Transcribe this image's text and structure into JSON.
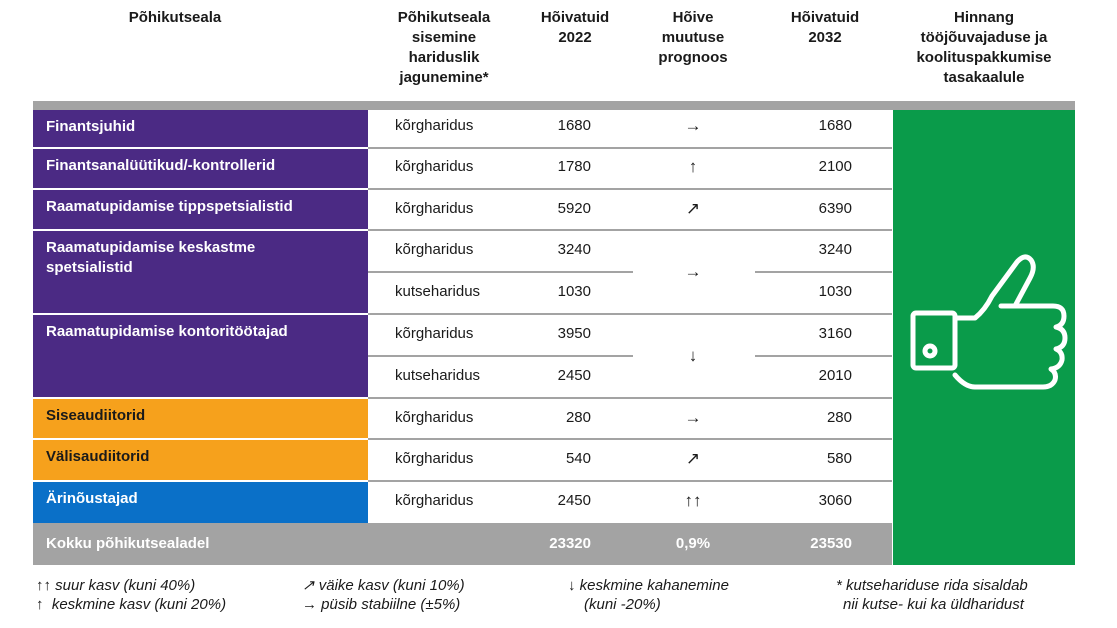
{
  "headers": {
    "occupation": "Põhikutseala",
    "education": [
      "Põhikutseala",
      "sisemine",
      "hariduslik",
      "jagunemine*"
    ],
    "emp2022": [
      "Hõivatuid",
      "2022"
    ],
    "forecast": [
      "Hõive",
      "muutuse",
      "prognoos"
    ],
    "emp2032": [
      "Hõivatuid",
      "2032"
    ],
    "assessment": [
      "Hinnang",
      "tööjõuvajaduse ja",
      "koolituspakkumise",
      "tasakaalule"
    ]
  },
  "occupations": [
    {
      "name": "Finantsjuhid",
      "color": "#4b2a84"
    },
    {
      "name": "Finantsanalüütikud/-kontrollerid",
      "color": "#4b2a84"
    },
    {
      "name": "Raamatupidamise tippspetsialistid",
      "color": "#4b2a84"
    },
    {
      "name": "Raamatupidamise keskastme spetsialistid",
      "color": "#4b2a84"
    },
    {
      "name": "Raamatupidamise kontoritöötajad",
      "color": "#4b2a84"
    },
    {
      "name": "Siseaudiitorid",
      "color": "#f6a11c"
    },
    {
      "name": "Välisaudiitorid",
      "color": "#f6a11c"
    },
    {
      "name": "Ärinõustajad",
      "color": "#0a70c8"
    }
  ],
  "rows": [
    {
      "education": "kõrgharidus",
      "emp2022": "1680",
      "emp2032": "1680"
    },
    {
      "education": "kõrgharidus",
      "emp2022": "1780",
      "emp2032": "2100"
    },
    {
      "education": "kõrgharidus",
      "emp2022": "5920",
      "emp2032": "6390"
    },
    {
      "education": "kõrgharidus",
      "emp2022": "3240",
      "emp2032": "3240"
    },
    {
      "education": "kutseharidus",
      "emp2022": "1030",
      "emp2032": "1030"
    },
    {
      "education": "kõrgharidus",
      "emp2022": "3950",
      "emp2032": "3160"
    },
    {
      "education": "kutseharidus",
      "emp2022": "2450",
      "emp2032": "2010"
    },
    {
      "education": "kõrgharidus",
      "emp2022": "280",
      "emp2032": "280"
    },
    {
      "education": "kõrgharidus",
      "emp2022": "540",
      "emp2032": "580"
    },
    {
      "education": "kõrgharidus",
      "emp2022": "2450",
      "emp2032": "3060"
    }
  ],
  "trends": [
    "→",
    "↑",
    "↗",
    "→",
    "↓",
    "→",
    "↗",
    "↑↑"
  ],
  "total": {
    "label": "Kokku põhikutsealadel",
    "emp2022": "23320",
    "change": "0,9%",
    "emp2032": "23530"
  },
  "assessment_icon": "thumbs-up-icon",
  "assessment_color": "#0a9b4a",
  "legend": {
    "big_increase": "↑↑ suur kasv (kuni 40%)",
    "medium_increase": "↑  keskmine kasv (kuni 20%)",
    "small_increase": "↗ väike kasv (kuni 10%)",
    "stable": "→ püsib stabiilne (±5%)",
    "medium_decrease_1": "↓ keskmine kahanemine",
    "medium_decrease_2": "(kuni -20%)",
    "note_1": "* kutsehariduse rida sisaldab",
    "note_2": "nii kutse- kui ka üldharidust"
  }
}
